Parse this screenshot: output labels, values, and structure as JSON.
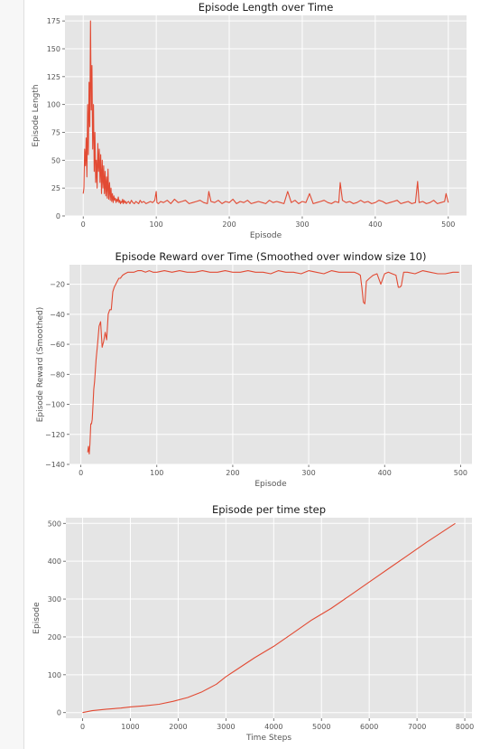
{
  "chart_data": [
    {
      "type": "line",
      "title": "Episode Length over Time",
      "xlabel": "Episode",
      "ylabel": "Episode Length",
      "xlim": [
        -25,
        525
      ],
      "ylim": [
        0,
        180
      ],
      "xticks": [
        0,
        100,
        200,
        300,
        400,
        500
      ],
      "yticks": [
        0,
        25,
        50,
        75,
        100,
        125,
        150,
        175
      ],
      "grid": true,
      "series": [
        {
          "color": "#e24a33",
          "x": [
            0,
            1,
            2,
            3,
            4,
            5,
            6,
            7,
            8,
            9,
            10,
            11,
            12,
            13,
            14,
            15,
            16,
            17,
            18,
            19,
            20,
            21,
            22,
            23,
            24,
            25,
            26,
            27,
            28,
            29,
            30,
            31,
            32,
            33,
            34,
            35,
            36,
            37,
            38,
            39,
            40,
            41,
            42,
            43,
            44,
            45,
            46,
            47,
            48,
            49,
            50,
            51,
            52,
            53,
            54,
            55,
            56,
            57,
            58,
            59,
            60,
            62,
            64,
            66,
            68,
            70,
            72,
            74,
            76,
            78,
            80,
            83,
            86,
            89,
            92,
            95,
            98,
            100,
            101,
            103,
            106,
            110,
            115,
            120,
            125,
            130,
            135,
            140,
            145,
            150,
            155,
            160,
            165,
            170,
            172,
            175,
            180,
            185,
            190,
            195,
            200,
            205,
            210,
            215,
            220,
            225,
            230,
            235,
            240,
            245,
            250,
            255,
            260,
            265,
            270,
            275,
            280,
            285,
            290,
            295,
            300,
            305,
            310,
            315,
            320,
            325,
            330,
            335,
            340,
            345,
            350,
            352,
            355,
            360,
            365,
            370,
            375,
            380,
            385,
            390,
            395,
            400,
            405,
            410,
            415,
            420,
            425,
            430,
            435,
            440,
            445,
            450,
            455,
            458,
            460,
            465,
            470,
            475,
            480,
            485,
            490,
            495,
            497,
            500
          ],
          "y": [
            20,
            25,
            60,
            45,
            70,
            35,
            100,
            55,
            120,
            80,
            175,
            95,
            135,
            60,
            100,
            40,
            75,
            30,
            50,
            25,
            65,
            40,
            60,
            30,
            55,
            20,
            50,
            25,
            45,
            20,
            40,
            18,
            35,
            16,
            42,
            15,
            30,
            14,
            25,
            13,
            20,
            12,
            18,
            14,
            16,
            12,
            15,
            13,
            17,
            12,
            14,
            11,
            13,
            12,
            15,
            11,
            14,
            12,
            13,
            11,
            12,
            13,
            11,
            14,
            12,
            11,
            13,
            12,
            11,
            14,
            12,
            13,
            11,
            12,
            13,
            12,
            14,
            22,
            12,
            11,
            13,
            12,
            14,
            11,
            15,
            12,
            13,
            14,
            11,
            12,
            13,
            14,
            12,
            11,
            22,
            13,
            12,
            14,
            11,
            13,
            12,
            15,
            11,
            13,
            12,
            14,
            11,
            12,
            13,
            12,
            11,
            14,
            12,
            13,
            12,
            11,
            22,
            12,
            14,
            11,
            13,
            12,
            20,
            11,
            12,
            13,
            14,
            12,
            11,
            13,
            12,
            30,
            14,
            12,
            13,
            11,
            12,
            14,
            12,
            13,
            11,
            12,
            14,
            13,
            11,
            12,
            13,
            14,
            11,
            12,
            13,
            11,
            12,
            31,
            12,
            13,
            11,
            12,
            14,
            11,
            12,
            13,
            20,
            12
          ]
        }
      ]
    },
    {
      "type": "line",
      "title": "Episode Reward over Time (Smoothed over window size 10)",
      "xlabel": "Episode",
      "ylabel": "Episode Reward (Smoothed)",
      "xlim": [
        -15,
        515
      ],
      "ylim": [
        -140,
        -7
      ],
      "xticks": [
        0,
        100,
        200,
        300,
        400,
        500
      ],
      "yticks": [
        -20,
        -40,
        -60,
        -80,
        -100,
        -120,
        -140
      ],
      "grid": true,
      "series": [
        {
          "color": "#e24a33",
          "x": [
            9,
            10,
            11,
            12,
            13,
            14,
            15,
            16,
            17,
            18,
            20,
            22,
            24,
            26,
            28,
            30,
            32,
            34,
            36,
            38,
            40,
            42,
            44,
            46,
            48,
            50,
            52,
            55,
            58,
            62,
            66,
            70,
            75,
            80,
            85,
            90,
            95,
            100,
            110,
            120,
            130,
            140,
            150,
            160,
            170,
            180,
            190,
            200,
            210,
            220,
            230,
            240,
            250,
            260,
            270,
            280,
            290,
            300,
            310,
            320,
            330,
            340,
            350,
            360,
            365,
            368,
            370,
            372,
            374,
            376,
            378,
            380,
            385,
            390,
            395,
            400,
            405,
            410,
            415,
            418,
            420,
            422,
            425,
            430,
            440,
            450,
            460,
            470,
            480,
            490,
            498
          ],
          "y": [
            -132,
            -128,
            -133,
            -126,
            -113,
            -113,
            -110,
            -100,
            -90,
            -85,
            -70,
            -60,
            -48,
            -45,
            -62,
            -58,
            -52,
            -57,
            -40,
            -37,
            -37,
            -25,
            -22,
            -20,
            -18,
            -16,
            -16,
            -14,
            -13,
            -12,
            -12,
            -12,
            -11,
            -11,
            -12,
            -11,
            -12,
            -12,
            -11,
            -12,
            -11,
            -12,
            -12,
            -11,
            -12,
            -12,
            -11,
            -12,
            -12,
            -11,
            -12,
            -12,
            -13,
            -11,
            -12,
            -12,
            -13,
            -11,
            -12,
            -13,
            -11,
            -12,
            -12,
            -12,
            -13,
            -14,
            -22,
            -32,
            -33,
            -18,
            -17,
            -16,
            -14,
            -13,
            -20,
            -13,
            -12,
            -13,
            -14,
            -22,
            -22,
            -21,
            -12,
            -12,
            -13,
            -11,
            -12,
            -13,
            -13,
            -12,
            -12
          ]
        }
      ]
    },
    {
      "type": "line",
      "title": "Episode per time step",
      "xlabel": "Time Steps",
      "ylabel": "Episode",
      "xlim": [
        -350,
        8150
      ],
      "ylim": [
        -15,
        515
      ],
      "xticks": [
        0,
        1000,
        2000,
        3000,
        4000,
        5000,
        6000,
        7000,
        8000
      ],
      "yticks": [
        0,
        100,
        200,
        300,
        400,
        500
      ],
      "grid": true,
      "series": [
        {
          "color": "#e24a33",
          "x": [
            0,
            200,
            500,
            800,
            1000,
            1300,
            1600,
            1900,
            2200,
            2500,
            2800,
            3000,
            3300,
            3600,
            4000,
            4400,
            4800,
            5200,
            5600,
            6000,
            6400,
            6800,
            7200,
            7800
          ],
          "y": [
            0,
            5,
            9,
            12,
            15,
            18,
            22,
            30,
            40,
            55,
            75,
            95,
            120,
            145,
            175,
            210,
            245,
            275,
            310,
            345,
            380,
            415,
            450,
            500
          ]
        }
      ]
    }
  ]
}
